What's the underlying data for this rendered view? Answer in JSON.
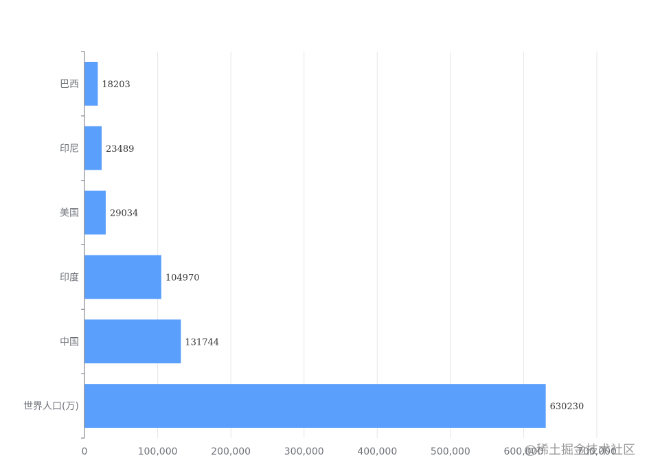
{
  "chart_data": {
    "type": "bar",
    "orientation": "horizontal",
    "categories": [
      "世界人口(万)",
      "中国",
      "印度",
      "美国",
      "印尼",
      "巴西"
    ],
    "values": [
      630230,
      131744,
      104970,
      29034,
      23489,
      18203
    ],
    "data_labels": [
      "630230",
      "131744",
      "104970",
      "29034",
      "23489",
      "18203"
    ],
    "xlim": [
      0,
      700000
    ],
    "x_ticks": [
      0,
      100000,
      200000,
      300000,
      400000,
      500000,
      600000,
      700000
    ],
    "x_tick_labels": [
      "0",
      "100,000",
      "200,000",
      "300,000",
      "400,000",
      "500,000",
      "600,000",
      "700,000"
    ],
    "grid": true,
    "bar_color": "#5b9ffc"
  },
  "watermark": "@稀土掘金技术社区"
}
